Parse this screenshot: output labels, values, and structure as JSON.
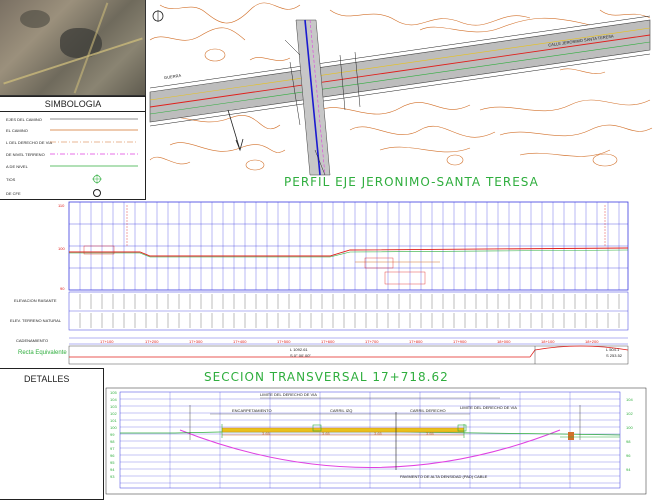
{
  "legend": {
    "title": "SIMBOLOGIA",
    "items": [
      {
        "label": "EJES DEL CAMINO"
      },
      {
        "label": "EL CAMINO"
      },
      {
        "label": "L DEL DERECHO DE VIA"
      },
      {
        "label": "DE NIVEL TERRENO"
      },
      {
        "label": "A DE NIVEL"
      },
      {
        "label": "TIOS"
      },
      {
        "label": "DE CFE"
      }
    ]
  },
  "map": {
    "road_label_right": "CALLE JERONIMO SANTA TERESA",
    "road_label_left": "GUERRA"
  },
  "profile": {
    "title": "PERFIL EJE JERONIMO-SANTA TERESA",
    "y_labels": [
      "110",
      "100",
      "90"
    ],
    "row_labels": {
      "elevation": "ELEVACION RASANTE",
      "terrain": "ELEV. TERRENO NATURAL",
      "stationing": "CADENAMIENTO"
    },
    "stations": [
      "17+100",
      "17+200",
      "17+300",
      "17+400",
      "17+500",
      "17+600",
      "17+700",
      "17+800",
      "17+900",
      "18+000",
      "18+100",
      "18+200"
    ],
    "curve_label_left": "Recta Equivalente",
    "curve_label_mid": "L 1092.61",
    "curve_label_mid2": "S 0° 00' 00\"",
    "curve_label_right": "L 504.1",
    "curve_label_right2": "S 253.52"
  },
  "details": {
    "label": "DETALLES",
    "section_title": "SECCION TRANSVERSAL 17+718.62",
    "y_ticks": [
      "105",
      "104",
      "103",
      "102",
      "101",
      "100",
      "99",
      "98",
      "97",
      "96",
      "95",
      "94",
      "93"
    ],
    "right_ticks": [
      "104",
      "102",
      "100",
      "98",
      "96",
      "94"
    ],
    "annotations": {
      "limit_left": "LIMITE DEL DERECHO DE VIA",
      "limit_right": "LIMITE DEL DERECHO DE VIA",
      "lane_left": "ENCARPETAMIENTO",
      "lane_mid": "CARRIL IZQ",
      "lane_right": "CARRIL DERECHO",
      "pipe_note": "PAVIMENTO DE ALTA DENSIDAD (PAD) CABLE",
      "dims": [
        "3.65",
        "3.65",
        "3.65",
        "3.65"
      ]
    }
  },
  "colors": {
    "grid_blue": "#3a3adf",
    "road_red": "#e0201c",
    "terrain_green": "#2fae3e",
    "contour_orange": "#d2702a",
    "magenta": "#e040e0",
    "yellow": "#e8c21a"
  }
}
